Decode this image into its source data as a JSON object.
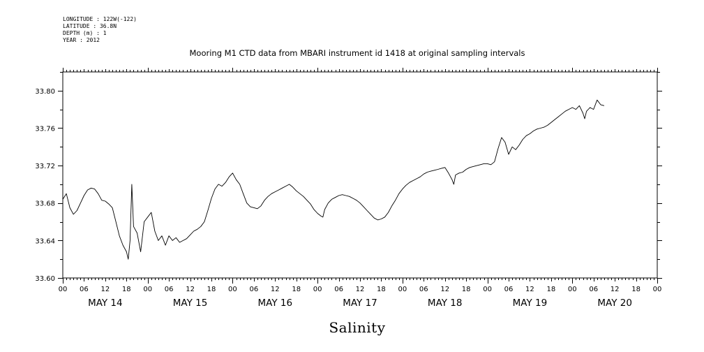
{
  "header": {
    "meta_lines": [
      "LONGITUDE : 122W(-122)",
      "LATITUDE : 36.8N",
      "DEPTH (m) : 1",
      "YEAR : 2012"
    ],
    "title": "Mooring M1 CTD data from MBARI instrument id 1418 at original sampling intervals"
  },
  "chart_data": {
    "type": "line",
    "title": "Mooring M1 CTD data from MBARI instrument id 1418 at original sampling intervals",
    "xlabel": "Salinity",
    "ylabel": "",
    "x_unit": "hours since 2012-05-14 00:00",
    "xlim": [
      0,
      168
    ],
    "ylim": [
      33.6,
      33.82
    ],
    "y_ticks": [
      "33.60",
      "33.64",
      "33.68",
      "33.72",
      "33.76",
      "33.80"
    ],
    "x_hour_tick_labels": [
      "00",
      "06",
      "12",
      "18",
      "00",
      "06",
      "12",
      "18",
      "00",
      "06",
      "12",
      "18",
      "00",
      "06",
      "12",
      "18",
      "00",
      "06",
      "12",
      "18",
      "00",
      "06",
      "12",
      "18",
      "00",
      "06",
      "12",
      "18",
      "00"
    ],
    "day_labels": [
      "MAY 14",
      "MAY 15",
      "MAY 16",
      "MAY 17",
      "MAY 18",
      "MAY 19",
      "MAY 20"
    ],
    "grid": false,
    "series": [
      {
        "color": "#000000",
        "points": [
          [
            0,
            33.684
          ],
          [
            1,
            33.69
          ],
          [
            2,
            33.675
          ],
          [
            3,
            33.668
          ],
          [
            4,
            33.672
          ],
          [
            5,
            33.68
          ],
          [
            6,
            33.688
          ],
          [
            7,
            33.694
          ],
          [
            8,
            33.696
          ],
          [
            9,
            33.695
          ],
          [
            10,
            33.69
          ],
          [
            11,
            33.683
          ],
          [
            12,
            33.682
          ],
          [
            13,
            33.679
          ],
          [
            14,
            33.675
          ],
          [
            15,
            33.66
          ],
          [
            16,
            33.645
          ],
          [
            17,
            33.635
          ],
          [
            18,
            33.628
          ],
          [
            18.5,
            33.62
          ],
          [
            19,
            33.64
          ],
          [
            19.5,
            33.7
          ],
          [
            20,
            33.655
          ],
          [
            21,
            33.648
          ],
          [
            22,
            33.628
          ],
          [
            23,
            33.66
          ],
          [
            24,
            33.665
          ],
          [
            25,
            33.67
          ],
          [
            26,
            33.65
          ],
          [
            27,
            33.64
          ],
          [
            28,
            33.645
          ],
          [
            29,
            33.635
          ],
          [
            30,
            33.645
          ],
          [
            31,
            33.64
          ],
          [
            32,
            33.643
          ],
          [
            33,
            33.638
          ],
          [
            34,
            33.64
          ],
          [
            35,
            33.642
          ],
          [
            36,
            33.646
          ],
          [
            37,
            33.65
          ],
          [
            38,
            33.652
          ],
          [
            39,
            33.655
          ],
          [
            40,
            33.66
          ],
          [
            41,
            33.672
          ],
          [
            42,
            33.685
          ],
          [
            43,
            33.695
          ],
          [
            44,
            33.7
          ],
          [
            45,
            33.698
          ],
          [
            46,
            33.702
          ],
          [
            47,
            33.708
          ],
          [
            48,
            33.712
          ],
          [
            49,
            33.705
          ],
          [
            50,
            33.7
          ],
          [
            51,
            33.69
          ],
          [
            52,
            33.68
          ],
          [
            53,
            33.676
          ],
          [
            54,
            33.675
          ],
          [
            55,
            33.674
          ],
          [
            56,
            33.677
          ],
          [
            57,
            33.683
          ],
          [
            58,
            33.687
          ],
          [
            59,
            33.69
          ],
          [
            60,
            33.692
          ],
          [
            61,
            33.694
          ],
          [
            62,
            33.696
          ],
          [
            63,
            33.698
          ],
          [
            64,
            33.7
          ],
          [
            65,
            33.697
          ],
          [
            66,
            33.693
          ],
          [
            67,
            33.69
          ],
          [
            68,
            33.687
          ],
          [
            69,
            33.683
          ],
          [
            70,
            33.679
          ],
          [
            71,
            33.673
          ],
          [
            72,
            33.669
          ],
          [
            73,
            33.666
          ],
          [
            73.5,
            33.665
          ],
          [
            74,
            33.673
          ],
          [
            75,
            33.68
          ],
          [
            76,
            33.684
          ],
          [
            77,
            33.686
          ],
          [
            78,
            33.688
          ],
          [
            79,
            33.689
          ],
          [
            80,
            33.688
          ],
          [
            81,
            33.687
          ],
          [
            82,
            33.685
          ],
          [
            83,
            33.683
          ],
          [
            84,
            33.68
          ],
          [
            85,
            33.676
          ],
          [
            86,
            33.672
          ],
          [
            87,
            33.668
          ],
          [
            88,
            33.664
          ],
          [
            89,
            33.662
          ],
          [
            90,
            33.663
          ],
          [
            91,
            33.665
          ],
          [
            92,
            33.67
          ],
          [
            93,
            33.677
          ],
          [
            94,
            33.683
          ],
          [
            95,
            33.69
          ],
          [
            96,
            33.695
          ],
          [
            97,
            33.699
          ],
          [
            98,
            33.702
          ],
          [
            99,
            33.704
          ],
          [
            100,
            33.706
          ],
          [
            101,
            33.708
          ],
          [
            102,
            33.711
          ],
          [
            103,
            33.713
          ],
          [
            104,
            33.714
          ],
          [
            105,
            33.715
          ],
          [
            106,
            33.716
          ],
          [
            107,
            33.717
          ],
          [
            108,
            33.718
          ],
          [
            109,
            33.712
          ],
          [
            110,
            33.705
          ],
          [
            110.5,
            33.7
          ],
          [
            111,
            33.71
          ],
          [
            112,
            33.712
          ],
          [
            113,
            33.713
          ],
          [
            114,
            33.716
          ],
          [
            115,
            33.718
          ],
          [
            116,
            33.719
          ],
          [
            117,
            33.72
          ],
          [
            118,
            33.721
          ],
          [
            119,
            33.722
          ],
          [
            120,
            33.722
          ],
          [
            121,
            33.721
          ],
          [
            122,
            33.724
          ],
          [
            123,
            33.738
          ],
          [
            124,
            33.75
          ],
          [
            125,
            33.745
          ],
          [
            126,
            33.732
          ],
          [
            127,
            33.74
          ],
          [
            128,
            33.737
          ],
          [
            129,
            33.742
          ],
          [
            130,
            33.748
          ],
          [
            131,
            33.752
          ],
          [
            132,
            33.754
          ],
          [
            133,
            33.757
          ],
          [
            134,
            33.759
          ],
          [
            135,
            33.76
          ],
          [
            136,
            33.761
          ],
          [
            137,
            33.763
          ],
          [
            138,
            33.766
          ],
          [
            139,
            33.769
          ],
          [
            140,
            33.772
          ],
          [
            141,
            33.775
          ],
          [
            142,
            33.778
          ],
          [
            143,
            33.78
          ],
          [
            144,
            33.782
          ],
          [
            145,
            33.78
          ],
          [
            146,
            33.784
          ],
          [
            147,
            33.776
          ],
          [
            147.5,
            33.77
          ],
          [
            148,
            33.778
          ],
          [
            149,
            33.782
          ],
          [
            150,
            33.78
          ],
          [
            151,
            33.79
          ],
          [
            152,
            33.785
          ],
          [
            153,
            33.784
          ]
        ]
      }
    ]
  }
}
